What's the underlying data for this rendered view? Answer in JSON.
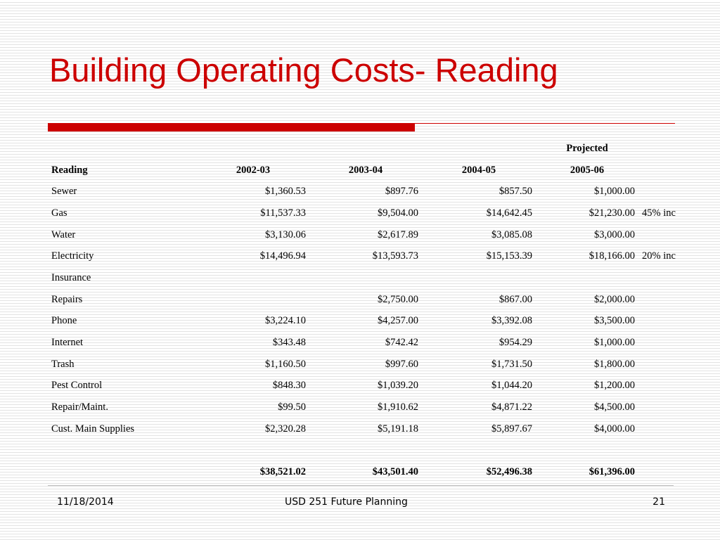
{
  "slide": {
    "title": "Building Operating Costs- Reading"
  },
  "table": {
    "projected_label": "Projected",
    "header": {
      "label": "Reading",
      "years": [
        "2002-03",
        "2003-04",
        "2004-05",
        "2005-06"
      ]
    },
    "rows": [
      {
        "name": "Sewer",
        "values": [
          "$1,360.53",
          "$897.76",
          "$857.50",
          "$1,000.00"
        ],
        "note": ""
      },
      {
        "name": "Gas",
        "values": [
          "$11,537.33",
          "$9,504.00",
          "$14,642.45",
          "$21,230.00"
        ],
        "note": "45% inc"
      },
      {
        "name": "Water",
        "values": [
          "$3,130.06",
          "$2,617.89",
          "$3,085.08",
          "$3,000.00"
        ],
        "note": ""
      },
      {
        "name": "Electricity",
        "values": [
          "$14,496.94",
          "$13,593.73",
          "$15,153.39",
          "$18,166.00"
        ],
        "note": "20% inc"
      },
      {
        "name": "Insurance",
        "values": [
          "",
          "",
          "",
          ""
        ],
        "note": ""
      },
      {
        "name": "Repairs",
        "values": [
          "",
          "$2,750.00",
          "$867.00",
          "$2,000.00"
        ],
        "note": ""
      },
      {
        "name": "Phone",
        "values": [
          "$3,224.10",
          "$4,257.00",
          "$3,392.08",
          "$3,500.00"
        ],
        "note": ""
      },
      {
        "name": "Internet",
        "values": [
          "$343.48",
          "$742.42",
          "$954.29",
          "$1,000.00"
        ],
        "note": ""
      },
      {
        "name": "Trash",
        "values": [
          "$1,160.50",
          "$997.60",
          "$1,731.50",
          "$1,800.00"
        ],
        "note": ""
      },
      {
        "name": "Pest Control",
        "values": [
          "$848.30",
          "$1,039.20",
          "$1,044.20",
          "$1,200.00"
        ],
        "note": ""
      },
      {
        "name": "Repair/Maint.",
        "values": [
          "$99.50",
          "$1,910.62",
          "$4,871.22",
          "$4,500.00"
        ],
        "note": ""
      },
      {
        "name": "Cust. Main Supplies",
        "values": [
          "$2,320.28",
          "$5,191.18",
          "$5,897.67",
          "$4,000.00"
        ],
        "note": ""
      }
    ],
    "totals": [
      "$38,521.02",
      "$43,501.40",
      "$52,496.38",
      "$61,396.00"
    ]
  },
  "footer": {
    "date": "11/18/2014",
    "center": "USD 251 Future Planning",
    "page": "21"
  },
  "colors": {
    "title": "#cc0000",
    "accent_bar": "#cc0000"
  }
}
